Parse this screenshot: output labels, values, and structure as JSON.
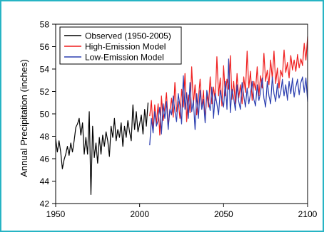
{
  "chart_data": {
    "type": "line",
    "title": "",
    "xlabel": "",
    "ylabel": "Annual Precipitation (inches)",
    "xlim": [
      1950,
      2100
    ],
    "ylim": [
      42,
      58
    ],
    "x_ticks": [
      1950,
      2000,
      2050,
      2100
    ],
    "y_ticks": [
      42,
      44,
      46,
      48,
      50,
      52,
      54,
      56,
      58
    ],
    "grid": false,
    "legend_position": "top-left",
    "frame_color": "#27b4c4",
    "series": [
      {
        "name": "Observed (1950-2005)",
        "color": "#000000",
        "x": [
          1950,
          1951,
          1952,
          1953,
          1954,
          1955,
          1956,
          1957,
          1958,
          1959,
          1960,
          1961,
          1962,
          1963,
          1964,
          1965,
          1966,
          1967,
          1968,
          1969,
          1970,
          1971,
          1972,
          1973,
          1974,
          1975,
          1976,
          1977,
          1978,
          1979,
          1980,
          1981,
          1982,
          1983,
          1984,
          1985,
          1986,
          1987,
          1988,
          1989,
          1990,
          1991,
          1992,
          1993,
          1994,
          1995,
          1996,
          1997,
          1998,
          1999,
          2000,
          2001,
          2002,
          2003,
          2004,
          2005
        ],
        "values": [
          47.8,
          46.6,
          47.6,
          46.6,
          45.1,
          45.9,
          46.4,
          47.1,
          46.3,
          47.4,
          46.6,
          47.6,
          48.8,
          49.1,
          49.6,
          48.1,
          49.2,
          46.4,
          47.9,
          46.4,
          50.2,
          42.8,
          48.9,
          46.1,
          47.4,
          45.6,
          47.9,
          46.4,
          48.1,
          47.1,
          48.4,
          47.6,
          46.2,
          48.9,
          47.9,
          49.6,
          47.6,
          48.6,
          47.9,
          49.2,
          47.1,
          48.9,
          47.9,
          49.4,
          48.4,
          47.6,
          50.8,
          48.6,
          50.2,
          48.4,
          49.1,
          49.9,
          48.2,
          50.4,
          48.9,
          51.0
        ]
      },
      {
        "name": "High-Emission Model",
        "color": "#ef1c1c",
        "x": [
          2006,
          2007,
          2008,
          2009,
          2010,
          2011,
          2012,
          2013,
          2014,
          2015,
          2016,
          2017,
          2018,
          2019,
          2020,
          2021,
          2022,
          2023,
          2024,
          2025,
          2026,
          2027,
          2028,
          2029,
          2030,
          2031,
          2032,
          2033,
          2034,
          2035,
          2036,
          2037,
          2038,
          2039,
          2040,
          2041,
          2042,
          2043,
          2044,
          2045,
          2046,
          2047,
          2048,
          2049,
          2050,
          2051,
          2052,
          2053,
          2054,
          2055,
          2056,
          2057,
          2058,
          2059,
          2060,
          2061,
          2062,
          2063,
          2064,
          2065,
          2066,
          2067,
          2068,
          2069,
          2070,
          2071,
          2072,
          2073,
          2074,
          2075,
          2076,
          2077,
          2078,
          2079,
          2080,
          2081,
          2082,
          2083,
          2084,
          2085,
          2086,
          2087,
          2088,
          2089,
          2090,
          2091,
          2092,
          2093,
          2094,
          2095,
          2096,
          2097,
          2098,
          2099,
          2100
        ],
        "values": [
          49.8,
          51.2,
          48.6,
          50.8,
          49.1,
          50.9,
          48.1,
          51.6,
          49.4,
          50.6,
          51.9,
          48.9,
          50.3,
          51.4,
          49.7,
          52.8,
          50.2,
          51.1,
          49.6,
          52.2,
          50.6,
          53.6,
          49.3,
          51.7,
          50.1,
          54.2,
          50.8,
          52.6,
          49.9,
          51.4,
          53.1,
          50.4,
          52.1,
          49.4,
          51.8,
          50.6,
          53.3,
          50.9,
          52.4,
          51.2,
          55.1,
          51.6,
          53.2,
          50.7,
          54.3,
          51.6,
          53.1,
          52.2,
          55.2,
          51.3,
          52.9,
          50.9,
          53.6,
          51.4,
          52.6,
          50.9,
          53.3,
          51.9,
          55.6,
          52.3,
          53.8,
          51.2,
          52.9,
          52.1,
          54.2,
          51.6,
          53.4,
          52.3,
          55.4,
          52.9,
          53.9,
          52.6,
          54.8,
          53.1,
          55.6,
          52.7,
          54.1,
          52.3,
          53.9,
          53.3,
          55.7,
          53.7,
          54.6,
          53.2,
          55.2,
          53.9,
          54.8,
          53.8,
          55.3,
          54.1,
          54.9,
          54.3,
          56.3,
          54.8,
          56.9
        ]
      },
      {
        "name": "Low-Emission Model",
        "color": "#2c3fb0",
        "x": [
          2006,
          2007,
          2008,
          2009,
          2010,
          2011,
          2012,
          2013,
          2014,
          2015,
          2016,
          2017,
          2018,
          2019,
          2020,
          2021,
          2022,
          2023,
          2024,
          2025,
          2026,
          2027,
          2028,
          2029,
          2030,
          2031,
          2032,
          2033,
          2034,
          2035,
          2036,
          2037,
          2038,
          2039,
          2040,
          2041,
          2042,
          2043,
          2044,
          2045,
          2046,
          2047,
          2048,
          2049,
          2050,
          2051,
          2052,
          2053,
          2054,
          2055,
          2056,
          2057,
          2058,
          2059,
          2060,
          2061,
          2062,
          2063,
          2064,
          2065,
          2066,
          2067,
          2068,
          2069,
          2070,
          2071,
          2072,
          2073,
          2074,
          2075,
          2076,
          2077,
          2078,
          2079,
          2080,
          2081,
          2082,
          2083,
          2084,
          2085,
          2086,
          2087,
          2088,
          2089,
          2090,
          2091,
          2092,
          2093,
          2094,
          2095,
          2096,
          2097,
          2098,
          2099,
          2100
        ],
        "values": [
          47.2,
          49.6,
          48.3,
          50.2,
          48.9,
          49.4,
          50.6,
          48.2,
          50.9,
          49.6,
          51.1,
          48.6,
          50.4,
          49.9,
          51.6,
          50.2,
          49.3,
          51.8,
          50.7,
          49.1,
          53.4,
          50.4,
          51.9,
          49.6,
          52.8,
          50.2,
          51.2,
          48.6,
          51.8,
          49.6,
          52.1,
          50.4,
          51.3,
          49.2,
          52.1,
          51.2,
          50.3,
          52.4,
          49.6,
          51.8,
          50.9,
          49.9,
          52.1,
          51.3,
          50.6,
          52.9,
          50.4,
          54.9,
          50.1,
          52.2,
          51.4,
          50.3,
          52.6,
          51.1,
          50.4,
          52.8,
          51.6,
          50.6,
          52.3,
          50.9,
          51.8,
          52.9,
          51.3,
          50.7,
          52.6,
          51.2,
          51.9,
          53.2,
          51.4,
          50.6,
          52.9,
          51.6,
          50.9,
          53.3,
          51.8,
          51.1,
          52.7,
          51.4,
          51.9,
          53.1,
          51.6,
          52.6,
          51.2,
          52.9,
          51.8,
          53.2,
          51.5,
          52.4,
          53.1,
          51.7,
          52.8,
          53.3,
          51.9,
          53.2,
          51.1
        ]
      }
    ]
  }
}
